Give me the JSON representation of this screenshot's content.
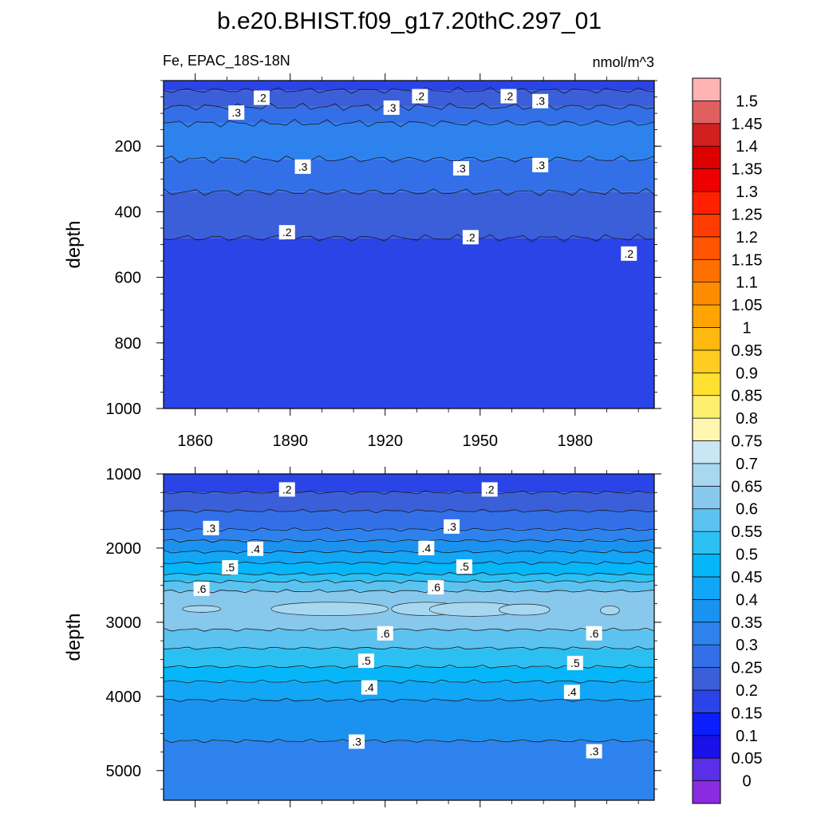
{
  "chart_data": {
    "type": "heatmap",
    "title": "b.e20.BHIST.f09_g17.20thC.297_01",
    "variable_label": "Fe, EPAC_18S-18N",
    "units": "nmol/m^3",
    "colorbar": {
      "levels": [
        "0",
        "0.05",
        "0.1",
        "0.15",
        "0.2",
        "0.25",
        "0.3",
        "0.35",
        "0.4",
        "0.45",
        "0.5",
        "0.55",
        "0.6",
        "0.65",
        "0.7",
        "0.75",
        "0.8",
        "0.85",
        "0.9",
        "0.95",
        "1",
        "1.05",
        "1.1",
        "1.15",
        "1.2",
        "1.25",
        "1.3",
        "1.35",
        "1.4",
        "1.45",
        "1.5"
      ],
      "colors": [
        "#8a2be2",
        "#5a2fe8",
        "#1a10e8",
        "#0a1eff",
        "#2a44e8",
        "#3a5fd8",
        "#3370e8",
        "#2e82ee",
        "#1a92f0",
        "#12a6f6",
        "#05b6f8",
        "#2cc0f2",
        "#5cc2f0",
        "#88c8ec",
        "#a8d8f0",
        "#c8e6f4",
        "#fff6b0",
        "#ffee70",
        "#ffe030",
        "#ffcc20",
        "#ffb810",
        "#ffa400",
        "#ff8c00",
        "#ff7000",
        "#ff5400",
        "#ff3c00",
        "#ff2000",
        "#ee0000",
        "#dd0000",
        "#d22020",
        "#e06060",
        "#ffb3b3"
      ]
    },
    "top_panel": {
      "ylabel": "depth",
      "ylim": [
        0,
        1000
      ],
      "yticks": [
        "200",
        "400",
        "600",
        "800",
        "1000"
      ],
      "xlim": [
        1850,
        2005
      ],
      "xticks": [
        "1860",
        "1890",
        "1920",
        "1950",
        "1980"
      ],
      "bands": [
        {
          "level": 0.15,
          "from": 0,
          "to": 30
        },
        {
          "level": 0.2,
          "from": 30,
          "to": 80
        },
        {
          "level": 0.25,
          "from": 80,
          "to": 130
        },
        {
          "level": 0.3,
          "from": 130,
          "to": 240
        },
        {
          "level": 0.25,
          "from": 240,
          "to": 340
        },
        {
          "level": 0.2,
          "from": 340,
          "to": 480
        },
        {
          "level": 0.15,
          "from": 480,
          "to": 1000
        }
      ],
      "contour_depths": [
        30,
        80,
        130,
        240,
        340,
        480
      ],
      "contour_labels": [
        {
          "text": ".2",
          "x": 1881,
          "y": 55
        },
        {
          "text": ".3",
          "x": 1873,
          "y": 100
        },
        {
          "text": ".3",
          "x": 1922,
          "y": 85
        },
        {
          "text": ".2",
          "x": 1931,
          "y": 50
        },
        {
          "text": ".2",
          "x": 1959,
          "y": 50
        },
        {
          "text": ".3",
          "x": 1969,
          "y": 65
        },
        {
          "text": ".3",
          "x": 1894,
          "y": 265
        },
        {
          "text": ".3",
          "x": 1944,
          "y": 270
        },
        {
          "text": ".3",
          "x": 1969,
          "y": 260
        },
        {
          "text": ".2",
          "x": 1889,
          "y": 465
        },
        {
          "text": ".2",
          "x": 1947,
          "y": 480
        },
        {
          "text": ".2",
          "x": 1997,
          "y": 530
        }
      ]
    },
    "bottom_panel": {
      "ylabel": "depth",
      "ylim": [
        1000,
        5400
      ],
      "yticks": [
        "1000",
        "2000",
        "3000",
        "4000",
        "5000"
      ],
      "xlim": [
        1850,
        2005
      ],
      "bands": [
        {
          "level": 0.15,
          "from": 1000,
          "to": 1250
        },
        {
          "level": 0.2,
          "from": 1250,
          "to": 1500
        },
        {
          "level": 0.25,
          "from": 1500,
          "to": 1750
        },
        {
          "level": 0.3,
          "from": 1750,
          "to": 1900
        },
        {
          "level": 0.35,
          "from": 1900,
          "to": 2050
        },
        {
          "level": 0.4,
          "from": 2050,
          "to": 2200
        },
        {
          "level": 0.45,
          "from": 2200,
          "to": 2350
        },
        {
          "level": 0.5,
          "from": 2350,
          "to": 2450
        },
        {
          "level": 0.55,
          "from": 2450,
          "to": 2580
        },
        {
          "level": 0.6,
          "from": 2580,
          "to": 3100
        },
        {
          "level": 0.55,
          "from": 3100,
          "to": 3350
        },
        {
          "level": 0.5,
          "from": 3350,
          "to": 3600
        },
        {
          "level": 0.45,
          "from": 3600,
          "to": 3800
        },
        {
          "level": 0.4,
          "from": 3800,
          "to": 4050
        },
        {
          "level": 0.35,
          "from": 4050,
          "to": 4600
        },
        {
          "level": 0.3,
          "from": 4600,
          "to": 5400
        }
      ],
      "contour_depths": [
        1250,
        1500,
        1750,
        1900,
        2050,
        2200,
        2350,
        2450,
        2580,
        3100,
        3350,
        3600,
        3800,
        4050,
        4600
      ],
      "max_patches": [
        {
          "x0": 1884,
          "x1": 1921,
          "y0": 2700,
          "y1": 2940
        },
        {
          "x0": 1922,
          "x1": 1944,
          "y0": 2700,
          "y1": 2940
        },
        {
          "x0": 1934,
          "x1": 1962,
          "y0": 2700,
          "y1": 2950
        },
        {
          "x0": 1956,
          "x1": 1972,
          "y0": 2730,
          "y1": 2930
        },
        {
          "x0": 1856,
          "x1": 1868,
          "y0": 2760,
          "y1": 2880
        },
        {
          "x0": 1988,
          "x1": 1994,
          "y0": 2760,
          "y1": 2920
        }
      ],
      "contour_labels": [
        {
          "text": ".2",
          "x": 1889,
          "y": 1220
        },
        {
          "text": ".2",
          "x": 1953,
          "y": 1220
        },
        {
          "text": ".3",
          "x": 1865,
          "y": 1740
        },
        {
          "text": ".3",
          "x": 1941,
          "y": 1720
        },
        {
          "text": ".4",
          "x": 1879,
          "y": 2020
        },
        {
          "text": ".4",
          "x": 1933,
          "y": 2010
        },
        {
          "text": ".5",
          "x": 1871,
          "y": 2270
        },
        {
          "text": ".5",
          "x": 1945,
          "y": 2260
        },
        {
          "text": ".6",
          "x": 1862,
          "y": 2560
        },
        {
          "text": ".6",
          "x": 1936,
          "y": 2540
        },
        {
          "text": ".6",
          "x": 1920,
          "y": 3160
        },
        {
          "text": ".6",
          "x": 1986,
          "y": 3160
        },
        {
          "text": ".5",
          "x": 1914,
          "y": 3530
        },
        {
          "text": ".5",
          "x": 1980,
          "y": 3560
        },
        {
          "text": ".4",
          "x": 1915,
          "y": 3890
        },
        {
          "text": ".4",
          "x": 1979,
          "y": 3950
        },
        {
          "text": ".3",
          "x": 1911,
          "y": 4620
        },
        {
          "text": ".3",
          "x": 1986,
          "y": 4750
        }
      ]
    }
  }
}
